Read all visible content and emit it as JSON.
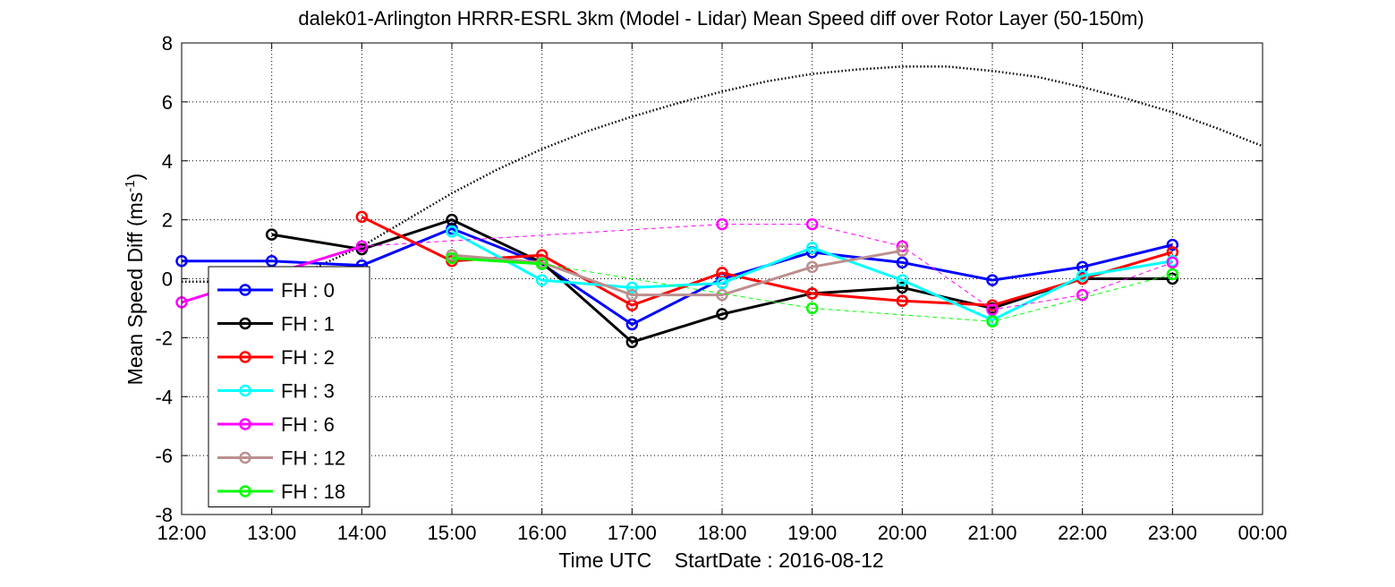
{
  "chart_data": {
    "type": "line",
    "title": "dalek01-Arlington HRRR-ESRL 3km (Model - Lidar) Mean Speed diff over Rotor Layer (50-150m)",
    "xlabel": "Time UTC    StartDate : 2016-08-12",
    "ylabel_main": "Mean Speed Diff (ms",
    "ylabel_sup": "-1",
    "ylabel_close": ")",
    "xlim": [
      12,
      24
    ],
    "ylim": [
      -8,
      8
    ],
    "x_ticks": [
      12,
      13,
      14,
      15,
      16,
      17,
      18,
      19,
      20,
      21,
      22,
      23,
      24
    ],
    "x_tick_labels": [
      "12:00",
      "13:00",
      "14:00",
      "15:00",
      "16:00",
      "17:00",
      "18:00",
      "19:00",
      "20:00",
      "21:00",
      "22:00",
      "23:00",
      "00:00"
    ],
    "y_ticks": [
      -8,
      -6,
      -4,
      -2,
      0,
      2,
      4,
      6,
      8
    ],
    "y_tick_labels": [
      "-8",
      "-6",
      "-4",
      "-2",
      "0",
      "2",
      "4",
      "6",
      "8"
    ],
    "grid": true,
    "legend_position": "bottom-left",
    "series": [
      {
        "name": "FH : 0",
        "color": "#0000ff",
        "x": [
          12,
          13,
          14,
          15,
          16,
          17,
          18,
          19,
          20,
          21,
          22,
          23
        ],
        "y": [
          0.6,
          0.6,
          0.45,
          1.7,
          0.5,
          -1.55,
          0.0,
          0.9,
          0.55,
          -0.05,
          0.4,
          1.15
        ]
      },
      {
        "name": "FH : 1",
        "color": "#000000",
        "x": [
          13,
          14,
          15,
          16,
          17,
          18,
          19,
          20,
          21,
          22,
          23
        ],
        "y": [
          1.5,
          1.0,
          2.0,
          0.55,
          -2.15,
          -1.2,
          -0.5,
          -0.3,
          -1.0,
          0.0,
          0.0
        ]
      },
      {
        "name": "FH : 2",
        "color": "#ff0000",
        "x": [
          14,
          15,
          16,
          17,
          18,
          19,
          20,
          21,
          22,
          23
        ],
        "y": [
          2.1,
          0.6,
          0.8,
          -0.9,
          0.2,
          -0.5,
          -0.75,
          -0.9,
          0.0,
          0.9
        ]
      },
      {
        "name": "FH : 3",
        "color": "#00ffff",
        "x": [
          15,
          16,
          17,
          18,
          19,
          20,
          21,
          22,
          23
        ],
        "y": [
          1.6,
          -0.05,
          -0.3,
          -0.15,
          1.05,
          -0.05,
          -1.4,
          0.1,
          0.6
        ]
      },
      {
        "name": "FH : 6",
        "color": "#ff00ff",
        "x": [
          12,
          14,
          18,
          19,
          20,
          21,
          22,
          23
        ],
        "y": [
          -0.8,
          1.1,
          1.85,
          1.85,
          1.1,
          -1.05,
          -0.55,
          0.55
        ],
        "dashed_after_index": 1
      },
      {
        "name": "FH : 12",
        "color": "#bc8f8f",
        "x": [
          15,
          16,
          17,
          18,
          19,
          20
        ],
        "y": [
          0.8,
          0.55,
          -0.55,
          -0.55,
          0.4,
          0.95
        ]
      },
      {
        "name": "FH : 18",
        "color": "#00ff00",
        "x": [
          15,
          16,
          19,
          21,
          23
        ],
        "y": [
          0.7,
          0.5,
          -1.0,
          -1.45,
          0.15
        ],
        "dashed_after_index": 1
      }
    ],
    "reference_curve": {
      "style": "dotted",
      "color": "#000000",
      "x": [
        12.0,
        12.5,
        13.0,
        13.5,
        14.0,
        14.5,
        15.0,
        15.5,
        16.0,
        16.5,
        17.0,
        17.5,
        18.0,
        18.5,
        19.0,
        19.5,
        20.0,
        20.5,
        21.0,
        21.5,
        22.0,
        22.5,
        23.0,
        23.5,
        24.0
      ],
      "y": [
        -0.1,
        -0.1,
        0.05,
        0.4,
        1.1,
        2.0,
        2.9,
        3.7,
        4.4,
        5.0,
        5.5,
        5.95,
        6.35,
        6.7,
        6.95,
        7.1,
        7.2,
        7.2,
        7.05,
        6.85,
        6.5,
        6.1,
        5.65,
        5.1,
        4.5
      ]
    }
  }
}
